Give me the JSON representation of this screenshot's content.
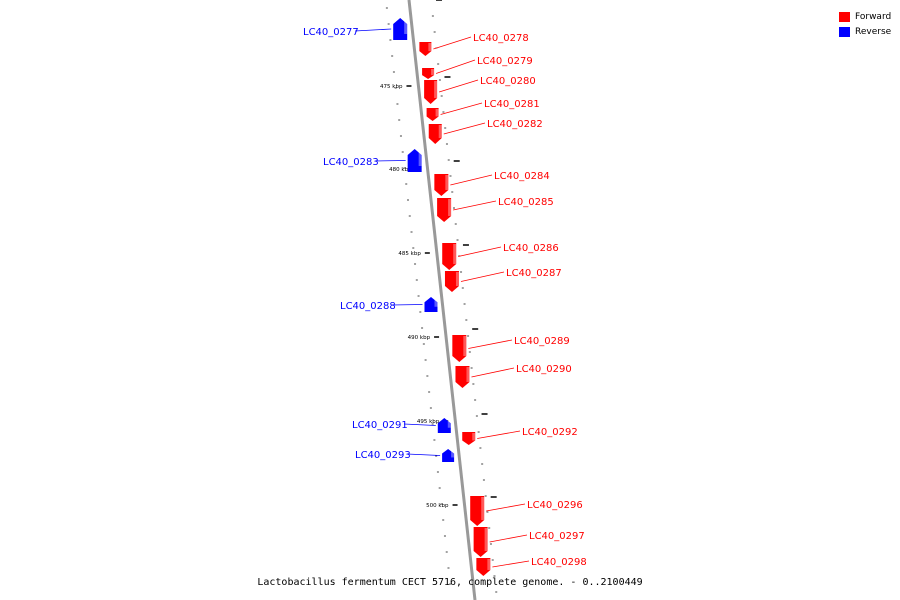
{
  "legend": [
    {
      "label": "Forward",
      "color": "#ff0000"
    },
    {
      "label": "Reverse",
      "color": "#0000ff"
    }
  ],
  "footer_caption": "Lactobacillus fermentum CECT 5716, complete genome. - 0..2100449",
  "colors": {
    "forward": "#ff0000",
    "reverse": "#0000ff",
    "backbone": "#999999"
  },
  "scale_ticks": [
    {
      "label": "475 kbp",
      "kbp": 475
    },
    {
      "label": "480 kbp",
      "kbp": 480
    },
    {
      "label": "485 kbp",
      "kbp": 485
    },
    {
      "label": "490 kbp",
      "kbp": 490
    },
    {
      "label": "495 kbp",
      "kbp": 495
    },
    {
      "label": "500 kbp",
      "kbp": 500
    }
  ],
  "genes": [
    {
      "name": "LC40_0277",
      "strand": "reverse"
    },
    {
      "name": "LC40_0278",
      "strand": "forward"
    },
    {
      "name": "LC40_0279",
      "strand": "forward"
    },
    {
      "name": "LC40_0280",
      "strand": "forward"
    },
    {
      "name": "LC40_0281",
      "strand": "forward"
    },
    {
      "name": "LC40_0282",
      "strand": "forward"
    },
    {
      "name": "LC40_0283",
      "strand": "reverse"
    },
    {
      "name": "LC40_0284",
      "strand": "forward"
    },
    {
      "name": "LC40_0285",
      "strand": "forward"
    },
    {
      "name": "LC40_0286",
      "strand": "forward"
    },
    {
      "name": "LC40_0287",
      "strand": "forward"
    },
    {
      "name": "LC40_0288",
      "strand": "reverse"
    },
    {
      "name": "LC40_0289",
      "strand": "forward"
    },
    {
      "name": "LC40_0290",
      "strand": "forward"
    },
    {
      "name": "LC40_0291",
      "strand": "reverse"
    },
    {
      "name": "LC40_0292",
      "strand": "forward"
    },
    {
      "name": "LC40_0293",
      "strand": "reverse"
    },
    {
      "name": "LC40_0296",
      "strand": "forward"
    },
    {
      "name": "LC40_0297",
      "strand": "forward"
    },
    {
      "name": "LC40_0298",
      "strand": "forward"
    }
  ]
}
